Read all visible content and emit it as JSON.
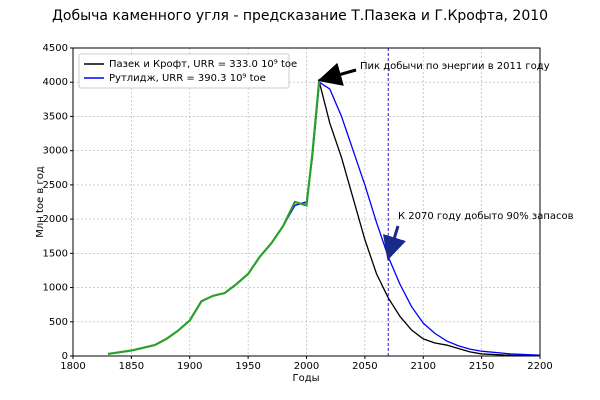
{
  "chart_data": {
    "type": "line",
    "title": "Добыча каменного угля - предсказание Т.Пазека и Г.Крофта, 2010",
    "x_label": "Годы",
    "y_label": "Млн toe в год",
    "x": [
      1830,
      1850,
      1870,
      1880,
      1890,
      1900,
      1910,
      1920,
      1930,
      1940,
      1950,
      1960,
      1970,
      1980,
      1990,
      2000,
      2005,
      2011,
      2020,
      2030,
      2040,
      2050,
      2060,
      2070,
      2080,
      2090,
      2100,
      2110,
      2120,
      2130,
      2140,
      2150,
      2175,
      2200
    ],
    "series": [
      {
        "name": "Пазек и Крофт, URR = 333.0 10⁹ toe",
        "color": "#000000",
        "values": [
          30,
          80,
          160,
          250,
          370,
          520,
          800,
          880,
          920,
          1050,
          1200,
          1450,
          1650,
          1900,
          2200,
          2250,
          2900,
          4000,
          3400,
          2900,
          2300,
          1700,
          1200,
          850,
          580,
          380,
          250,
          190,
          160,
          110,
          60,
          30,
          10,
          5
        ]
      },
      {
        "name": "Рутлидж, URR = 390.3 10⁹ toe",
        "color": "#0000ff",
        "values": [
          30,
          80,
          160,
          250,
          370,
          520,
          800,
          880,
          920,
          1050,
          1200,
          1450,
          1650,
          1900,
          2200,
          2250,
          2900,
          4000,
          3900,
          3500,
          3000,
          2500,
          1950,
          1450,
          1050,
          720,
          480,
          330,
          220,
          150,
          100,
          70,
          30,
          12
        ]
      },
      {
        "color": "#2ca02c",
        "values": [
          30,
          80,
          160,
          250,
          370,
          520,
          800,
          880,
          920,
          1050,
          1200,
          1450,
          1650,
          1900,
          2250,
          2200,
          2950,
          4050,
          null,
          null,
          null,
          null,
          null,
          null,
          null,
          null,
          null,
          null,
          null,
          null,
          null,
          null,
          null,
          null
        ]
      }
    ],
    "xlim": [
      1800,
      2200
    ],
    "ylim": [
      0,
      4500
    ],
    "xticks": [
      1800,
      1850,
      1900,
      1950,
      2000,
      2050,
      2100,
      2150,
      2200
    ],
    "yticks": [
      0,
      500,
      1000,
      1500,
      2000,
      2500,
      3000,
      3500,
      4000,
      4500
    ],
    "grid": true,
    "legend": "upper left",
    "vline": {
      "x": 2070,
      "color": "#0000cc"
    },
    "annotations": [
      {
        "text": "Пик добычи по энергии в 2011 году",
        "xy": [
          2011,
          4000
        ]
      },
      {
        "text": "К 2070 году добыто 90% запасов",
        "xy": [
          2070,
          1450
        ]
      }
    ]
  }
}
